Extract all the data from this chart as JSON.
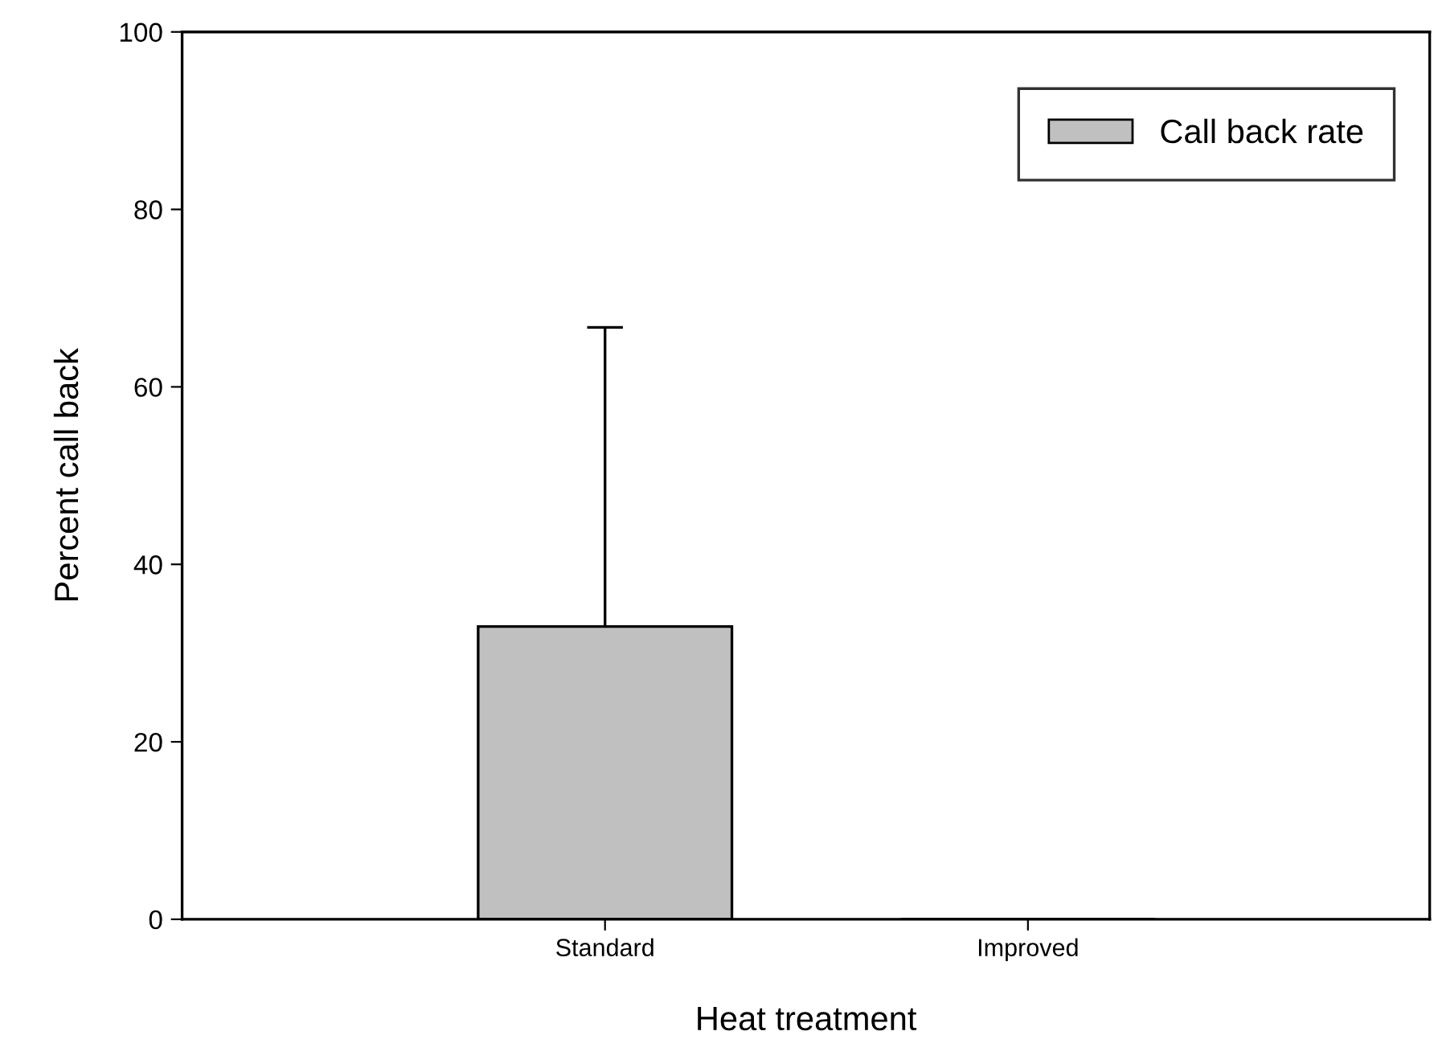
{
  "chart_data": {
    "type": "bar",
    "xlabel": "Heat treatment",
    "ylabel": "Percent call back",
    "categories": [
      "Standard",
      "Improved"
    ],
    "series": [
      {
        "name": "Call back rate",
        "color": "#c0c0c0",
        "values": [
          33,
          0
        ],
        "errors": [
          [
            33,
            66.7
          ],
          null
        ]
      }
    ],
    "ylim": [
      0,
      100
    ],
    "yticks": [
      0,
      20,
      40,
      60,
      80,
      100
    ],
    "grid": false,
    "legend": "top right"
  }
}
